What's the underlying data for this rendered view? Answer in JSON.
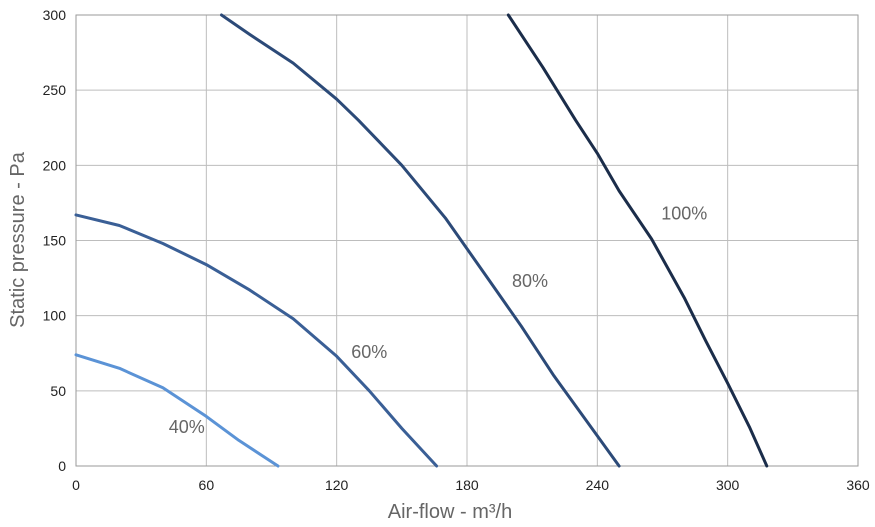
{
  "chart_data": {
    "type": "line",
    "xlabel": "Air-flow - m³/h",
    "ylabel": "Static pressure - Pa",
    "xlim": [
      0,
      360
    ],
    "ylim": [
      0,
      300
    ],
    "xticks": [
      0,
      60,
      120,
      180,
      240,
      300,
      360
    ],
    "yticks": [
      0,
      50,
      100,
      150,
      200,
      250,
      300
    ],
    "grid": true,
    "series": [
      {
        "name": "40%",
        "color": "#5b93d6",
        "label_at": [
          51,
          22
        ],
        "points": [
          [
            0,
            74
          ],
          [
            20,
            65
          ],
          [
            40,
            52
          ],
          [
            60,
            33
          ],
          [
            75,
            17
          ],
          [
            93,
            0
          ]
        ]
      },
      {
        "name": "60%",
        "color": "#3a5f96",
        "label_at": [
          135,
          72
        ],
        "points": [
          [
            0,
            167
          ],
          [
            20,
            160
          ],
          [
            40,
            148
          ],
          [
            60,
            134
          ],
          [
            80,
            117
          ],
          [
            100,
            98
          ],
          [
            120,
            73
          ],
          [
            135,
            50
          ],
          [
            150,
            25
          ],
          [
            166,
            0
          ]
        ]
      },
      {
        "name": "80%",
        "color": "#2c4a78",
        "label_at": [
          209,
          119
        ],
        "points": [
          [
            67,
            300
          ],
          [
            80,
            287
          ],
          [
            100,
            268
          ],
          [
            120,
            244
          ],
          [
            130,
            230
          ],
          [
            150,
            200
          ],
          [
            170,
            165
          ],
          [
            190,
            124
          ],
          [
            205,
            93
          ],
          [
            220,
            60
          ],
          [
            238,
            24
          ],
          [
            250,
            0
          ]
        ]
      },
      {
        "name": "100%",
        "color": "#1b2d4a",
        "label_at": [
          280,
          164
        ],
        "points": [
          [
            199,
            300
          ],
          [
            215,
            265
          ],
          [
            230,
            230
          ],
          [
            240,
            208
          ],
          [
            250,
            183
          ],
          [
            265,
            151
          ],
          [
            280,
            112
          ],
          [
            290,
            83
          ],
          [
            300,
            55
          ],
          [
            310,
            26
          ],
          [
            318,
            0
          ]
        ]
      }
    ]
  }
}
